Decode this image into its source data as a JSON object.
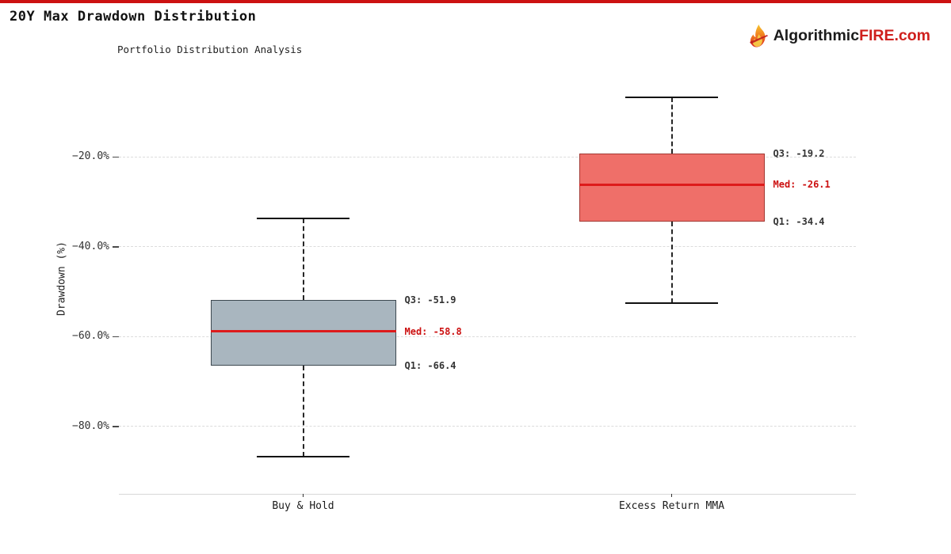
{
  "page": {
    "title": "20Y Max Drawdown Distribution"
  },
  "brand": {
    "prefix": "Algorithmic",
    "suffix": "FIRE.com",
    "prefix_color": "#1c1c1c",
    "suffix_color": "#cf1f1c",
    "icon": "flame-icon"
  },
  "accent_color": "#cc1111",
  "chart_data": {
    "type": "boxplot",
    "title": "Portfolio Distribution Analysis",
    "ylabel": "Drawdown (%)",
    "ylim": [
      0,
      -95
    ],
    "grid": "horizontal-dashed",
    "legend": "none",
    "yticks": [
      {
        "value": -20,
        "label": "−20.0%"
      },
      {
        "value": -40,
        "label": "−40.0%"
      },
      {
        "value": -60,
        "label": "−60.0%"
      },
      {
        "value": -80,
        "label": "−80.0%"
      }
    ],
    "categories": [
      "Buy & Hold",
      "Excess Return MMA"
    ],
    "series": [
      {
        "name": "Buy & Hold",
        "whisker_high": -33.7,
        "q3": -51.9,
        "median": -58.8,
        "q1": -66.4,
        "whisker_low": -86.7,
        "labels": {
          "q3": "Q3: -51.9",
          "median": "Med: -58.8",
          "q1": "Q1: -66.4"
        },
        "colors": {
          "fill": "#a9b6bf",
          "border": "#3d4850"
        }
      },
      {
        "name": "Excess Return MMA",
        "whisker_high": -6.7,
        "q3": -19.2,
        "median": -26.1,
        "q1": -34.4,
        "whisker_low": -52.6,
        "labels": {
          "q3": "Q3: -19.2",
          "median": "Med: -26.1",
          "q1": "Q1: -34.4"
        },
        "colors": {
          "fill": "#ef6f69",
          "border": "#a23832"
        }
      }
    ],
    "median_color": "#dd1b1b",
    "annotation_color": "#333333",
    "annotation_median_color": "#cc1111"
  }
}
